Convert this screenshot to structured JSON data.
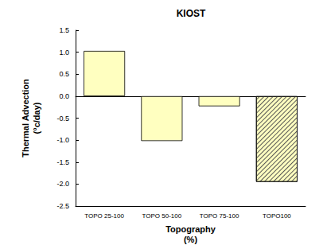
{
  "chart_data": {
    "type": "bar",
    "title": "KIOST",
    "x_label": "Topography\n(%)",
    "y_label": "Thermal Advection\n(°c/day)",
    "categories": [
      "TOPO 25-100",
      "TOPO 50-100",
      "TOPO 75-100",
      "TOPO100"
    ],
    "values": [
      1.03,
      -1.02,
      -0.23,
      -1.95
    ],
    "color": "#ffffc0",
    "ylim": [
      -2.5,
      1.5
    ],
    "yticks": [
      -2.5,
      {
        "value": -2.0,
        "label": "-2.0"
      },
      -1.5,
      {
        "value": -1.0,
        "label": "-1.0"
      },
      -0.5,
      {
        "value": 0.0,
        "label": "0.0"
      },
      0.5,
      {
        "value": 1.0,
        "label": "1.0"
      },
      1.5
    ],
    "grid": false
  }
}
